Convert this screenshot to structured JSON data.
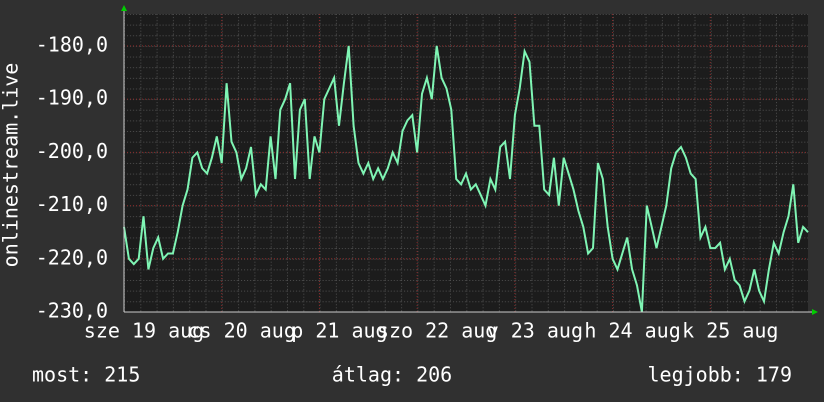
{
  "chart_data": {
    "type": "line",
    "y_label": "onlinestream.live",
    "color": "#7ff5b4",
    "grid": true,
    "ylim": [
      -230,
      -174
    ],
    "yticks": [
      {
        "value": -230,
        "label": "-230,0"
      },
      {
        "value": -220,
        "label": "-220,0"
      },
      {
        "value": -210,
        "label": "-210,0"
      },
      {
        "value": -200,
        "label": "-200,0"
      },
      {
        "value": -190,
        "label": "-190,0"
      },
      {
        "value": -180,
        "label": "-180,0"
      }
    ],
    "xlim": [
      0,
      7
    ],
    "xticks": [
      {
        "value": 0,
        "label": "sze 19 aug"
      },
      {
        "value": 1,
        "label": "cs 20 aug"
      },
      {
        "value": 2,
        "label": "p 21 aug"
      },
      {
        "value": 3,
        "label": "szo 22 aug"
      },
      {
        "value": 4,
        "label": "v 23 aug"
      },
      {
        "value": 5,
        "label": "h 24 aug"
      },
      {
        "value": 6,
        "label": "k 25 aug"
      }
    ],
    "x": [
      0,
      0.05,
      0.1,
      0.15,
      0.2,
      0.25,
      0.3,
      0.35,
      0.4,
      0.45,
      0.5,
      0.55,
      0.6,
      0.65,
      0.7,
      0.75,
      0.8,
      0.85,
      0.9,
      0.95,
      1,
      1.05,
      1.1,
      1.15,
      1.2,
      1.25,
      1.3,
      1.35,
      1.4,
      1.45,
      1.5,
      1.55,
      1.6,
      1.65,
      1.7,
      1.75,
      1.8,
      1.85,
      1.9,
      1.95,
      2,
      2.05,
      2.1,
      2.15,
      2.2,
      2.25,
      2.3,
      2.35,
      2.4,
      2.45,
      2.5,
      2.55,
      2.6,
      2.65,
      2.7,
      2.75,
      2.8,
      2.85,
      2.9,
      2.95,
      3,
      3.05,
      3.1,
      3.15,
      3.2,
      3.25,
      3.3,
      3.35,
      3.4,
      3.45,
      3.5,
      3.55,
      3.6,
      3.65,
      3.7,
      3.75,
      3.8,
      3.85,
      3.9,
      3.95,
      4,
      4.05,
      4.1,
      4.15,
      4.2,
      4.25,
      4.3,
      4.35,
      4.4,
      4.45,
      4.5,
      4.55,
      4.6,
      4.65,
      4.7,
      4.75,
      4.8,
      4.85,
      4.9,
      4.95,
      5,
      5.05,
      5.1,
      5.15,
      5.2,
      5.25,
      5.3,
      5.35,
      5.4,
      5.45,
      5.5,
      5.55,
      5.6,
      5.65,
      5.7,
      5.75,
      5.8,
      5.85,
      5.9,
      5.95,
      6,
      6.05,
      6.1,
      6.15,
      6.2,
      6.25,
      6.3,
      6.35,
      6.4,
      6.45,
      6.5,
      6.55,
      6.6,
      6.65,
      6.7,
      6.75,
      6.8,
      6.85,
      6.9,
      6.95,
      7
    ],
    "values": [
      -214,
      -220,
      -221,
      -220,
      -212,
      -222,
      -218,
      -216,
      -220,
      -219,
      -219,
      -215,
      -210,
      -207,
      -201,
      -200,
      -203,
      -204,
      -201,
      -197,
      -202,
      -187,
      -198,
      -200,
      -205,
      -203,
      -199,
      -208,
      -206,
      -207,
      -197,
      -205,
      -192,
      -190,
      -187,
      -205,
      -192,
      -190,
      -205,
      -197,
      -200,
      -190,
      -188,
      -186,
      -195,
      -187,
      -180,
      -195,
      -202,
      -204,
      -202,
      -205,
      -203,
      -205,
      -203,
      -200,
      -202,
      -196,
      -194,
      -193,
      -200,
      -189,
      -186,
      -190,
      -180,
      -186,
      -188,
      -192,
      -205,
      -206,
      -204,
      -207,
      -206,
      -208,
      -210,
      -205,
      -207,
      -199,
      -198,
      -205,
      -193,
      -188,
      -181,
      -183,
      -195,
      -195,
      -207,
      -208,
      -201,
      -210,
      -201,
      -204,
      -207,
      -211,
      -214,
      -219,
      -218,
      -202,
      -205,
      -214,
      -220,
      -222,
      -219,
      -216,
      -222,
      -225,
      -230,
      -210,
      -214,
      -218,
      -214,
      -210,
      -203,
      -200,
      -199,
      -201,
      -204,
      -205,
      -216,
      -214,
      -218,
      -218,
      -217,
      -222,
      -220,
      -224,
      -225,
      -228,
      -226,
      -222,
      -226,
      -228,
      -222,
      -217,
      -219,
      -215,
      -212,
      -206,
      -217,
      -214,
      -215
    ]
  },
  "footer": {
    "current": "most: 215",
    "average": "átlag: 206",
    "best": "legjobb: 179"
  }
}
